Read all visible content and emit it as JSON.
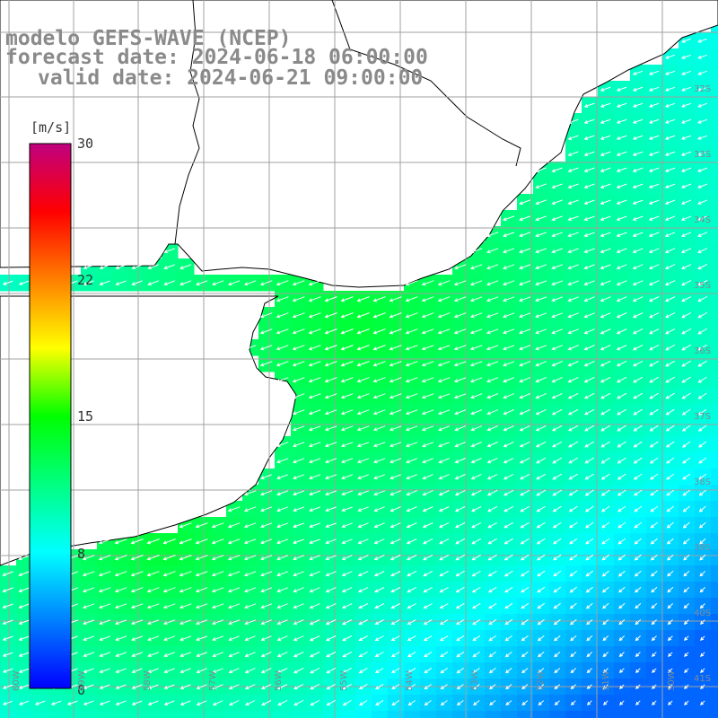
{
  "title": {
    "model": "modelo GEFS-WAVE (NCEP)",
    "forecast": "forecast date: 2024-06-18 06:00:00",
    "valid": "valid date: 2024-06-21 09:00:00"
  },
  "colorbar": {
    "unit": "[m/s]",
    "ticks": [
      "30",
      "22",
      "15",
      "8",
      "0"
    ],
    "tick_values": [
      30,
      22,
      15,
      8,
      0
    ],
    "range": [
      0,
      30
    ],
    "colors": [
      "#0000ff",
      "#0080ff",
      "#00ffff",
      "#00ff80",
      "#00ff00",
      "#ffff00",
      "#ff8000",
      "#ff0000",
      "#c00080"
    ]
  },
  "map": {
    "lat_labels": [
      "32S",
      "33S",
      "34S",
      "35S",
      "36S",
      "37S",
      "38S",
      "39S",
      "40S",
      "41S"
    ],
    "lon_labels": [
      "60W",
      "59W",
      "58W",
      "57W",
      "56W",
      "55W",
      "54W",
      "53W",
      "52W",
      "51W",
      "50W"
    ],
    "land_color": "#ffffff",
    "grid_color": "#a0a0a0",
    "coast_color": "#000000",
    "arrow_color": "#ffffff"
  }
}
